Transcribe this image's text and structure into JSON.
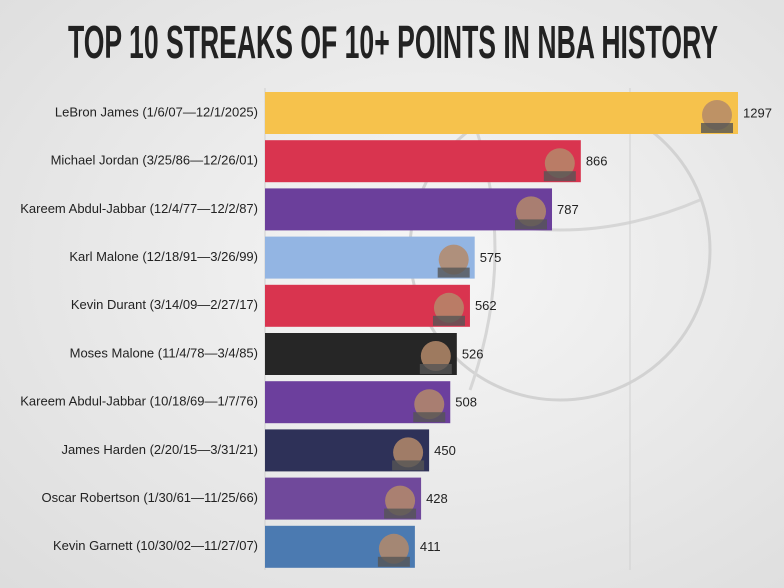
{
  "chart_data": {
    "type": "bar",
    "orientation": "horizontal",
    "title": "TOP 10 STREAKS OF 10+ POINTS IN NBA HISTORY",
    "categories": [
      "LeBron James (1/6/07—12/1/2025)",
      "Michael Jordan (3/25/86—12/26/01)",
      "Kareem Abdul-Jabbar (12/4/77—12/2/87)",
      "Karl Malone (12/18/91—3/26/99)",
      "Kevin Durant (3/14/09—2/27/17)",
      "Moses Malone (11/4/78—3/4/85)",
      "Kareem Abdul-Jabbar (10/18/69—1/7/76)",
      "James Harden (2/20/15—3/31/21)",
      "Oscar Robertson (1/30/61—11/25/66)",
      "Kevin Garnett (10/30/02—11/27/07)"
    ],
    "values": [
      1297,
      866,
      787,
      575,
      562,
      526,
      508,
      450,
      428,
      411
    ],
    "colors": [
      "#f6c24c",
      "#d9344f",
      "#6b3f9b",
      "#93b5e3",
      "#d9344f",
      "#262626",
      "#6c3f9d",
      "#2e3158",
      "#70499b",
      "#4b7ab1"
    ]
  }
}
